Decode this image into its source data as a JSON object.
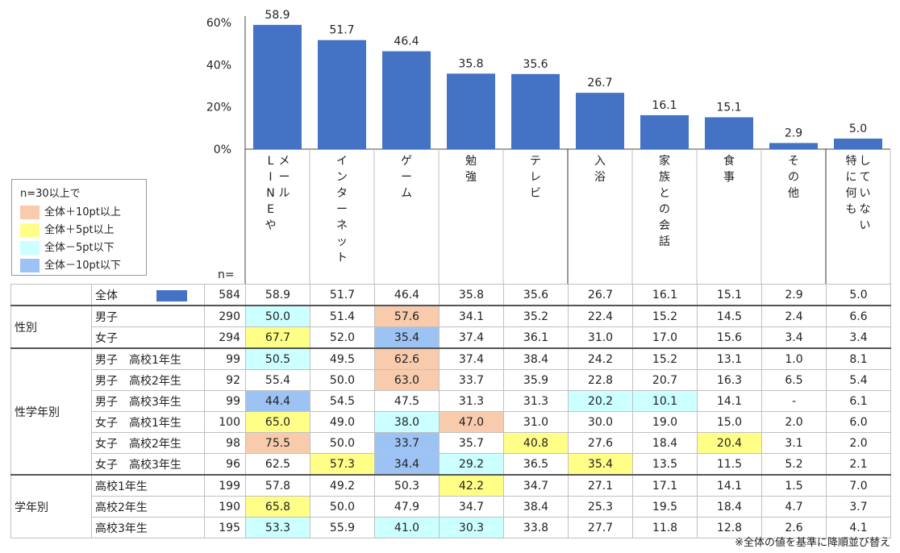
{
  "colors": {
    "bar": "#4472C4",
    "orange": "#F8CBAD",
    "yellow": "#FFFF88",
    "lightblue": "#CCFFFF",
    "blue": "#9DC3F5"
  },
  "chart_data": {
    "type": "bar",
    "categories": [
      "LINEやメール",
      "インターネット",
      "ゲーム",
      "勉強",
      "テレビ",
      "入浴",
      "家族との会話",
      "食事",
      "その他",
      "特に何もしていない"
    ],
    "category_columns": [
      [
        "L",
        "I",
        "N",
        "E",
        "や"
      ],
      [
        "メ",
        "ー",
        "ル"
      ],
      [
        "イ",
        "ン",
        "タ",
        "ー",
        "ネ",
        "ッ",
        "ト"
      ],
      [
        "ゲ",
        "ー",
        "ム"
      ],
      [
        "勉",
        "強"
      ],
      [
        "テ",
        "レ",
        "ビ"
      ],
      [
        "入",
        "浴"
      ],
      [
        "家",
        "族",
        "と",
        "の",
        "会",
        "話"
      ],
      [
        "食",
        "事"
      ],
      [
        "そ",
        "の",
        "他"
      ],
      [
        "特",
        "に",
        "何",
        "も"
      ],
      [
        "し",
        "て",
        "い",
        "な",
        "い"
      ]
    ],
    "category_layout": [
      [
        0,
        1
      ],
      [
        2
      ],
      [
        3
      ],
      [
        4
      ],
      [
        5
      ],
      [
        6
      ],
      [
        7
      ],
      [
        8
      ],
      [
        9
      ],
      [
        10,
        11
      ]
    ],
    "values": [
      58.9,
      51.7,
      46.4,
      35.8,
      35.6,
      26.7,
      16.1,
      15.1,
      2.9,
      5.0
    ],
    "value_labels": [
      "58.9",
      "51.7",
      "46.4",
      "35.8",
      "35.6",
      "26.7",
      "16.1",
      "15.1",
      "2.9",
      "5.0"
    ],
    "yticks": [
      "60%",
      "40%",
      "20%",
      "0%"
    ],
    "ytick_values": [
      60,
      40,
      20,
      0
    ],
    "ylim": [
      0,
      60
    ],
    "grid": false
  },
  "legend": {
    "title": "n=30以上で",
    "items": [
      {
        "label": "全体＋10pt以上",
        "color": "#F8CBAD"
      },
      {
        "label": "全体＋5pt以上",
        "color": "#FFFF88"
      },
      {
        "label": "全体－5pt以下",
        "color": "#CCFFFF"
      },
      {
        "label": "全体－10pt以下",
        "color": "#9DC3F5"
      }
    ]
  },
  "n_label": "n=",
  "note": "※全体の値を基準に降順並び替え",
  "table": {
    "total": {
      "label": "全体",
      "n": "584",
      "values": [
        "58.9",
        "51.7",
        "46.4",
        "35.8",
        "35.6",
        "26.7",
        "16.1",
        "15.1",
        "2.9",
        "5.0"
      ]
    },
    "groups": [
      {
        "name": "性別",
        "rows": [
          {
            "label": "男子",
            "n": "290",
            "values": [
              "50.0",
              "51.4",
              "57.6",
              "34.1",
              "35.2",
              "22.4",
              "15.2",
              "14.5",
              "2.4",
              "6.6"
            ],
            "hl": [
              "c",
              null,
              "o",
              null,
              null,
              null,
              null,
              null,
              null,
              null
            ]
          },
          {
            "label": "女子",
            "n": "294",
            "values": [
              "67.7",
              "52.0",
              "35.4",
              "37.4",
              "36.1",
              "31.0",
              "17.0",
              "15.6",
              "3.4",
              "3.4"
            ],
            "hl": [
              "y",
              null,
              "b",
              null,
              null,
              null,
              null,
              null,
              null,
              null
            ]
          }
        ]
      },
      {
        "name": "性学年別",
        "rows": [
          {
            "label": "男子　高校1年生",
            "n": "99",
            "values": [
              "50.5",
              "49.5",
              "62.6",
              "37.4",
              "38.4",
              "24.2",
              "15.2",
              "13.1",
              "1.0",
              "8.1"
            ],
            "hl": [
              "c",
              null,
              "o",
              null,
              null,
              null,
              null,
              null,
              null,
              null
            ]
          },
          {
            "label": "男子　高校2年生",
            "n": "92",
            "values": [
              "55.4",
              "50.0",
              "63.0",
              "33.7",
              "35.9",
              "22.8",
              "20.7",
              "16.3",
              "6.5",
              "5.4"
            ],
            "hl": [
              null,
              null,
              "o",
              null,
              null,
              null,
              null,
              null,
              null,
              null
            ]
          },
          {
            "label": "男子　高校3年生",
            "n": "99",
            "values": [
              "44.4",
              "54.5",
              "47.5",
              "31.3",
              "31.3",
              "20.2",
              "10.1",
              "14.1",
              "-",
              "6.1"
            ],
            "hl": [
              "b",
              null,
              null,
              null,
              null,
              "c",
              "c",
              null,
              null,
              null
            ]
          },
          {
            "label": "女子　高校1年生",
            "n": "100",
            "values": [
              "65.0",
              "49.0",
              "38.0",
              "47.0",
              "31.0",
              "30.0",
              "19.0",
              "15.0",
              "2.0",
              "6.0"
            ],
            "hl": [
              "y",
              null,
              "c",
              "o",
              null,
              null,
              null,
              null,
              null,
              null
            ]
          },
          {
            "label": "女子　高校2年生",
            "n": "98",
            "values": [
              "75.5",
              "50.0",
              "33.7",
              "35.7",
              "40.8",
              "27.6",
              "18.4",
              "20.4",
              "3.1",
              "2.0"
            ],
            "hl": [
              "o",
              null,
              "b",
              null,
              "y",
              null,
              null,
              "y",
              null,
              null
            ]
          },
          {
            "label": "女子　高校3年生",
            "n": "96",
            "values": [
              "62.5",
              "57.3",
              "34.4",
              "29.2",
              "36.5",
              "35.4",
              "13.5",
              "11.5",
              "5.2",
              "2.1"
            ],
            "hl": [
              null,
              "y",
              "b",
              "c",
              null,
              "y",
              null,
              null,
              null,
              null
            ]
          }
        ]
      },
      {
        "name": "学年別",
        "rows": [
          {
            "label": "高校1年生",
            "n": "199",
            "values": [
              "57.8",
              "49.2",
              "50.3",
              "42.2",
              "34.7",
              "27.1",
              "17.1",
              "14.1",
              "1.5",
              "7.0"
            ],
            "hl": [
              null,
              null,
              null,
              "y",
              null,
              null,
              null,
              null,
              null,
              null
            ]
          },
          {
            "label": "高校2年生",
            "n": "190",
            "values": [
              "65.8",
              "50.0",
              "47.9",
              "34.7",
              "38.4",
              "25.3",
              "19.5",
              "18.4",
              "4.7",
              "3.7"
            ],
            "hl": [
              "y",
              null,
              null,
              null,
              null,
              null,
              null,
              null,
              null,
              null
            ]
          },
          {
            "label": "高校3年生",
            "n": "195",
            "values": [
              "53.3",
              "55.9",
              "41.0",
              "30.3",
              "33.8",
              "27.7",
              "11.8",
              "12.8",
              "2.6",
              "4.1"
            ],
            "hl": [
              "c",
              null,
              "c",
              "c",
              null,
              null,
              null,
              null,
              null,
              null
            ]
          }
        ]
      }
    ]
  }
}
